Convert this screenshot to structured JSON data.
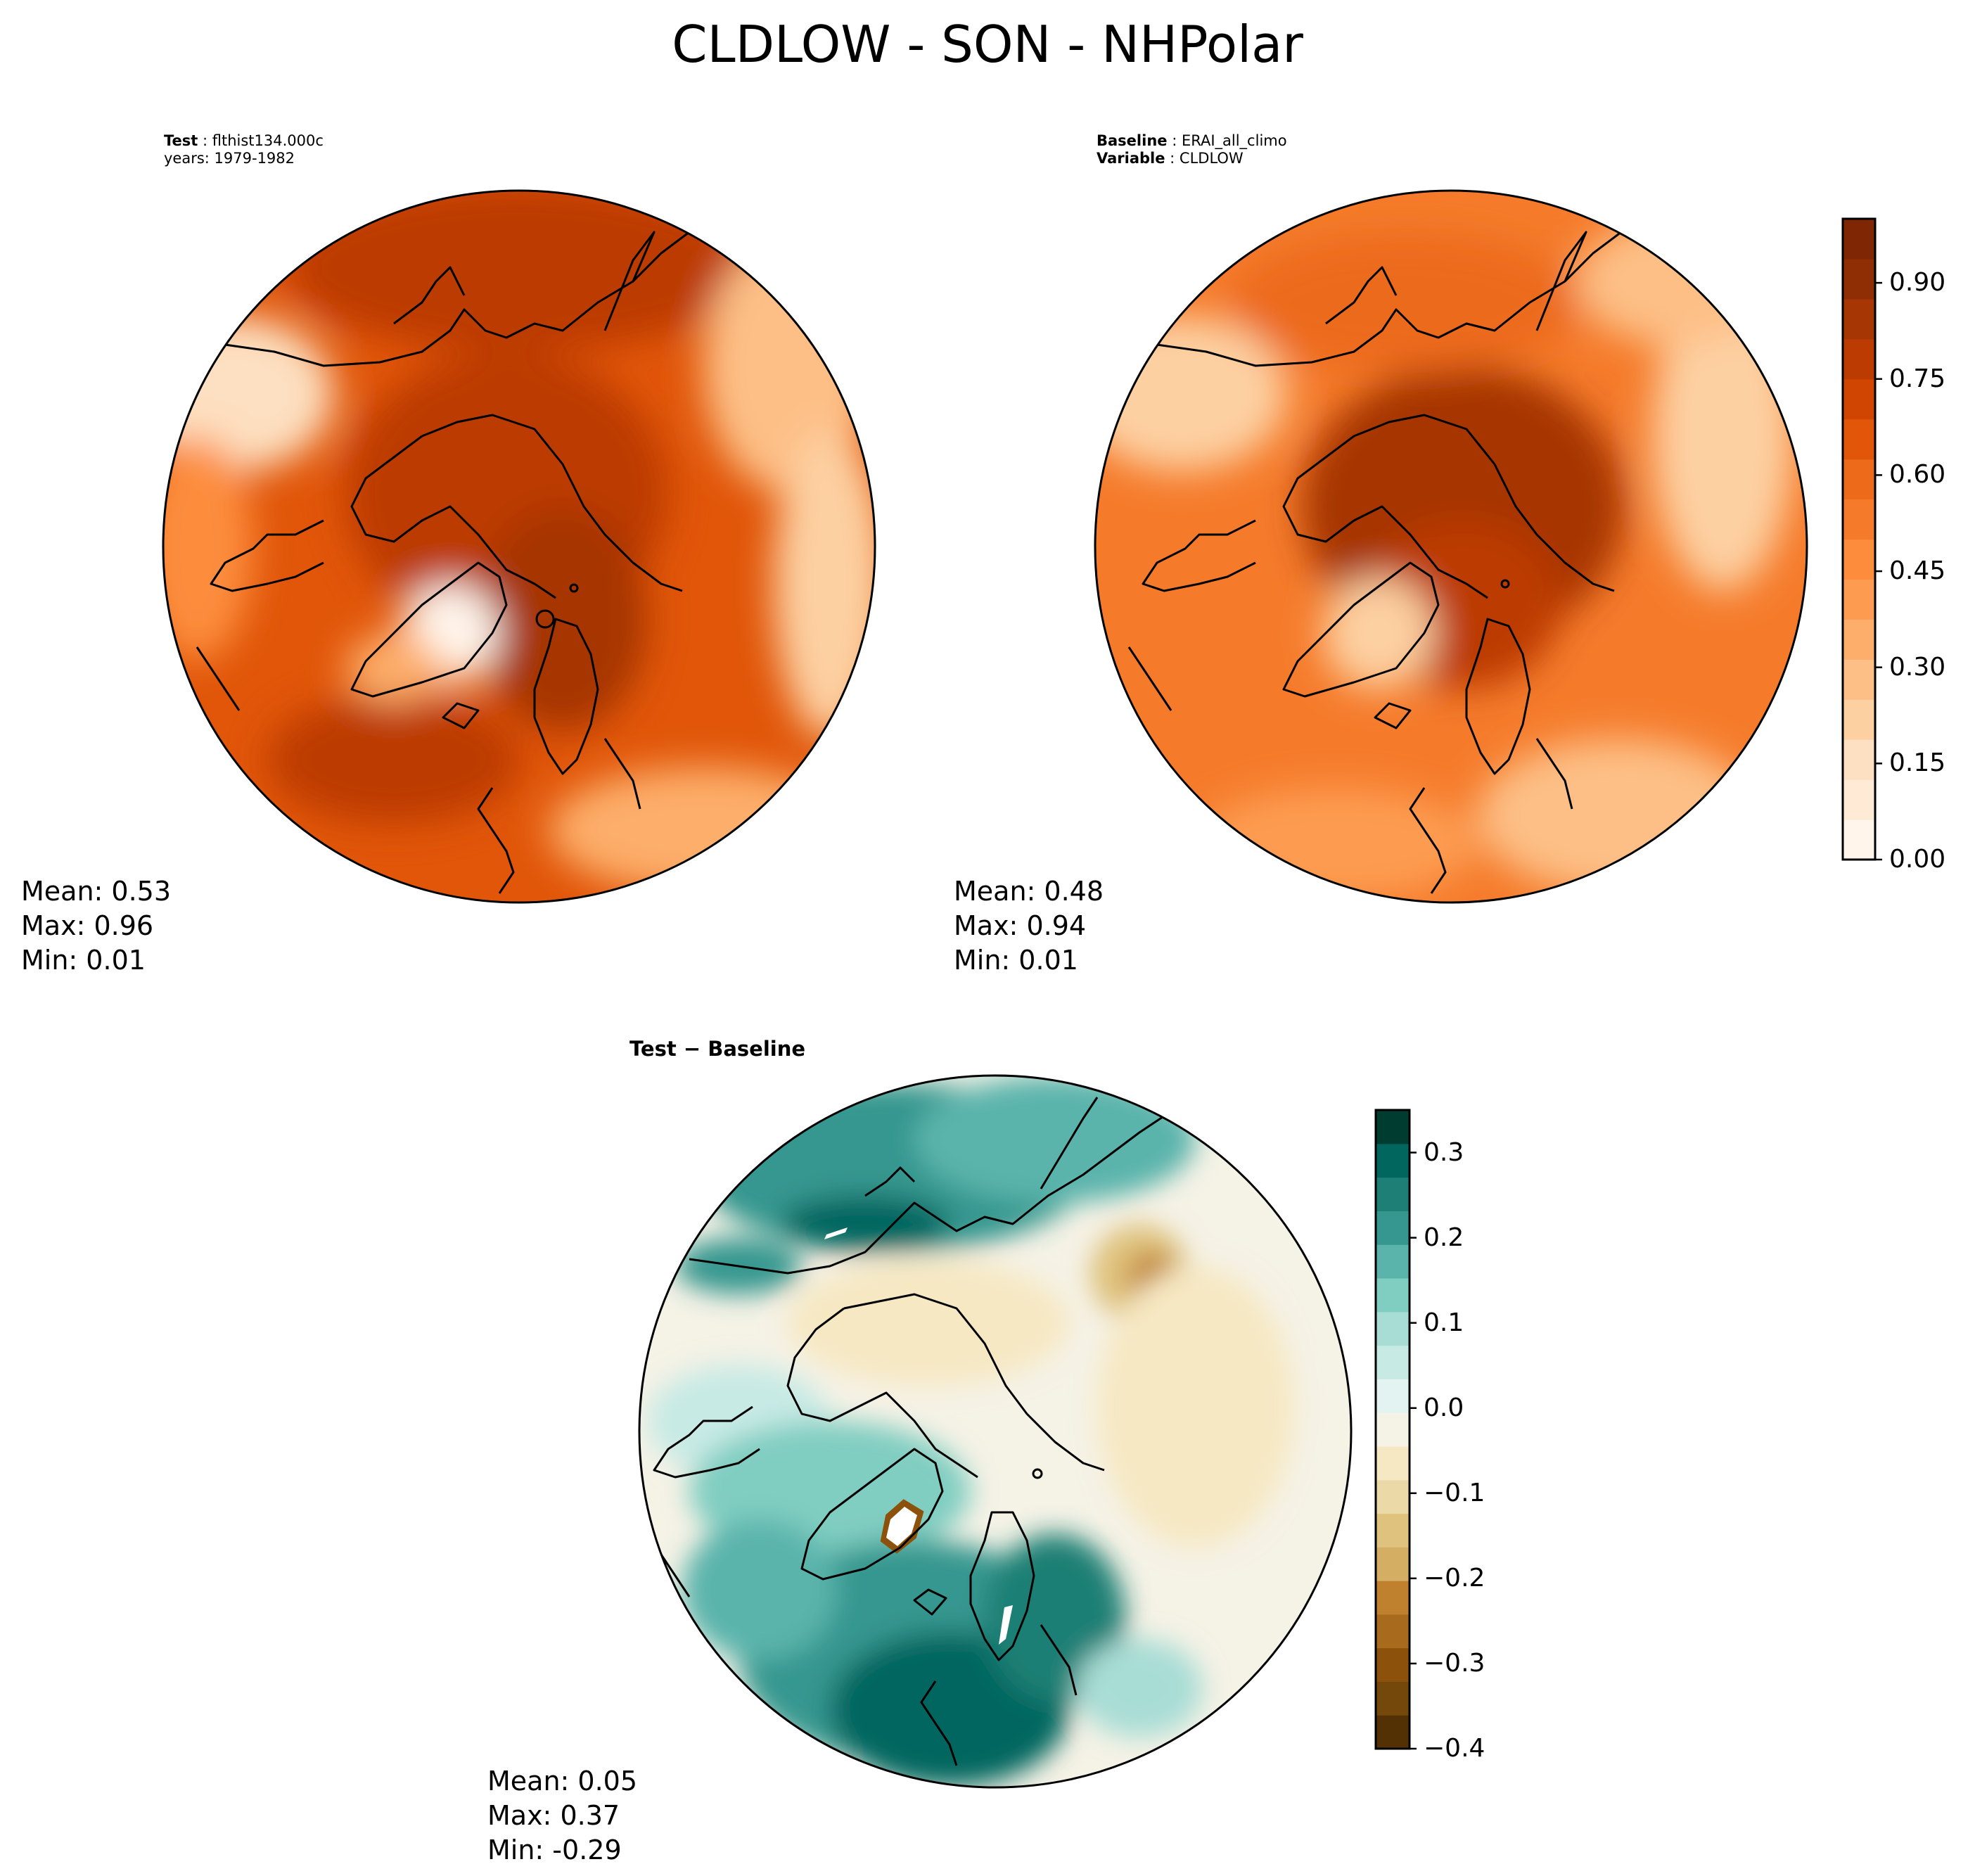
{
  "figure": {
    "title": "CLDLOW - SON - NHPolar"
  },
  "colors": {
    "orange_levels": [
      "#fff5eb",
      "#feead5",
      "#fde0c1",
      "#fdd0a2",
      "#fdbf86",
      "#fdae6b",
      "#fd9c51",
      "#fd8d3c",
      "#f57b2b",
      "#ec6a1a",
      "#e15609",
      "#d04501",
      "#bc3b02",
      "#a63603",
      "#8f2d04",
      "#7f2704"
    ],
    "diverging_levels": [
      "#543005",
      "#74470a",
      "#8c510a",
      "#a86b1e",
      "#bf812d",
      "#d4ae62",
      "#dfc27d",
      "#ecd9a8",
      "#f6e8c3",
      "#f5f2e6",
      "#e3f3f1",
      "#c7eae5",
      "#a8ddd5",
      "#80cdc1",
      "#5ab4ac",
      "#35978f",
      "#1d7f75",
      "#01665e",
      "#003c30"
    ],
    "coastline": "#000000",
    "missing": "#ffffff"
  },
  "chart_data": [
    {
      "type": "heatmap",
      "projection": "north-polar-stereographic",
      "header": {
        "label": "Test",
        "value": "flthist134.000c",
        "line2": "years: 1979-1982"
      },
      "stats": {
        "mean": "Mean:  0.53",
        "max": "Max:  0.96",
        "min": "Min:  0.01"
      },
      "mean": 0.53,
      "max": 0.96,
      "min": 0.01,
      "colormap": "orange_levels"
    },
    {
      "type": "heatmap",
      "projection": "north-polar-stereographic",
      "header": {
        "label": "Baseline",
        "value": "ERAI_all_climo",
        "label2": "Variable",
        "value2": "CLDLOW"
      },
      "stats": {
        "mean": "Mean:  0.48",
        "max": "Max:  0.94",
        "min": "Min:  0.01"
      },
      "mean": 0.48,
      "max": 0.94,
      "min": 0.01,
      "colormap": "orange_levels",
      "colorbar": {
        "range": [
          0.0,
          1.0
        ],
        "ticks": [
          "0.00",
          "0.15",
          "0.30",
          "0.45",
          "0.60",
          "0.75",
          "0.90"
        ],
        "tick_values": [
          0.0,
          0.15,
          0.3,
          0.45,
          0.6,
          0.75,
          0.9
        ]
      }
    },
    {
      "type": "heatmap",
      "projection": "north-polar-stereographic",
      "header": {
        "title": "Test − Baseline"
      },
      "stats": {
        "mean": "Mean:  0.05",
        "max": "Max:  0.37",
        "min": "Min: -0.29"
      },
      "mean": 0.05,
      "max": 0.37,
      "min": -0.29,
      "colormap": "diverging_levels",
      "colorbar": {
        "range": [
          -0.4,
          0.35
        ],
        "ticks": [
          "−0.4",
          "−0.3",
          "−0.2",
          "−0.1",
          "0.0",
          "0.1",
          "0.2",
          "0.3"
        ],
        "tick_values": [
          -0.4,
          -0.3,
          -0.2,
          -0.1,
          0.0,
          0.1,
          0.2,
          0.3
        ]
      }
    }
  ]
}
